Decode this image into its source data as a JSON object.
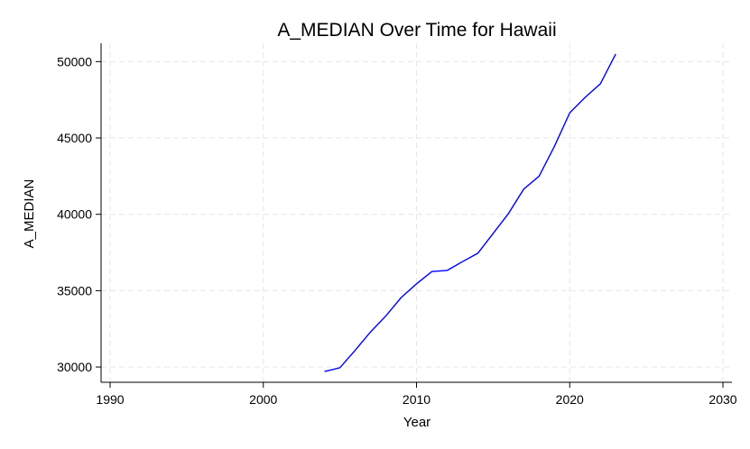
{
  "chart_data": {
    "type": "line",
    "title": "A_MEDIAN Over Time for Hawaii",
    "xlabel": "Year",
    "ylabel": "A_MEDIAN",
    "xlim": [
      1990,
      2030
    ],
    "ylim": [
      29000,
      51200
    ],
    "xticks": [
      1990,
      2000,
      2010,
      2020,
      2030
    ],
    "yticks": [
      30000,
      35000,
      40000,
      45000,
      50000
    ],
    "grid": true,
    "series": [
      {
        "color": "#0000ff",
        "x": [
          2004,
          2005,
          2006,
          2007,
          2008,
          2009,
          2010,
          2011,
          2012,
          2013,
          2014,
          2015,
          2016,
          2017,
          2018,
          2019,
          2020,
          2021,
          2022,
          2023
        ],
        "y": [
          29700,
          29950,
          31100,
          32300,
          33350,
          34550,
          35450,
          36250,
          36330,
          36900,
          37450,
          38750,
          40050,
          41650,
          42500,
          44450,
          46650,
          47650,
          48550,
          50500
        ]
      }
    ]
  }
}
